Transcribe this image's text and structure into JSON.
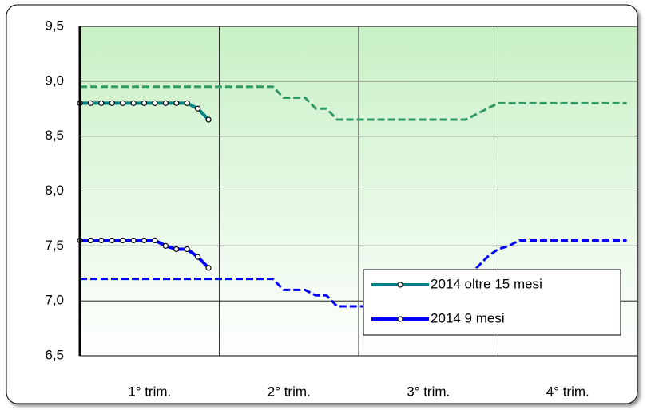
{
  "chart_data": {
    "type": "line",
    "categories": [
      "1° trim.",
      "2° trim.",
      "3° trim.",
      "4° trim."
    ],
    "x": [
      1,
      2,
      3,
      4,
      5,
      6,
      7,
      8,
      9,
      10,
      11,
      12,
      13,
      14,
      15,
      16,
      17,
      18,
      19,
      20,
      21,
      22,
      23,
      24,
      25,
      26,
      27,
      28,
      29,
      30,
      31,
      32,
      33,
      34,
      35,
      36,
      37,
      38,
      39,
      40,
      41,
      42,
      43,
      44,
      45,
      46,
      47,
      48,
      49,
      50,
      51,
      52
    ],
    "xlim": [
      1,
      53
    ],
    "ylim": [
      6.5,
      9.5
    ],
    "yticks": [
      {
        "value": 6.5,
        "label": "6,5"
      },
      {
        "value": 7,
        "label": "7,0"
      },
      {
        "value": 7.5,
        "label": "7,5"
      },
      {
        "value": 8,
        "label": "8,0"
      },
      {
        "value": 8.5,
        "label": "8,5"
      },
      {
        "value": 9,
        "label": "9,0"
      },
      {
        "value": 9.5,
        "label": "9,5"
      }
    ],
    "grid": true,
    "legend": "lower right",
    "series": [
      {
        "color": "#339966",
        "dashed": true,
        "values": [
          8.95,
          8.95,
          8.95,
          8.95,
          8.95,
          8.95,
          8.95,
          8.95,
          8.95,
          8.95,
          8.95,
          8.95,
          8.95,
          8.95,
          8.95,
          8.95,
          8.95,
          8.95,
          8.95,
          8.85,
          8.85,
          8.85,
          8.75,
          8.75,
          8.65,
          8.65,
          8.65,
          8.65,
          8.65,
          8.65,
          8.65,
          8.65,
          8.65,
          8.65,
          8.65,
          8.65,
          8.65,
          8.7,
          8.75,
          8.8,
          8.8,
          8.8,
          8.8,
          8.8,
          8.8,
          8.8,
          8.8,
          8.8,
          8.8,
          8.8,
          8.8,
          8.8
        ]
      },
      {
        "color": "#0000ff",
        "dashed": true,
        "values": [
          7.2,
          7.2,
          7.2,
          7.2,
          7.2,
          7.2,
          7.2,
          7.2,
          7.2,
          7.2,
          7.2,
          7.2,
          7.2,
          7.2,
          7.2,
          7.2,
          7.2,
          7.2,
          7.2,
          7.1,
          7.1,
          7.1,
          7.05,
          7.05,
          6.95,
          6.95,
          6.95,
          6.95,
          6.95,
          6.95,
          6.95,
          6.95,
          6.95,
          6.95,
          6.95,
          6.95,
          6.95,
          7.3,
          7.4,
          7.47,
          7.5,
          7.55,
          7.55,
          7.55,
          7.55,
          7.55,
          7.55,
          7.55,
          7.55,
          7.55,
          7.55,
          7.55
        ]
      },
      {
        "name": "2014 oltre 15 mesi",
        "color": "#008080",
        "dashed": false,
        "values": [
          8.8,
          8.8,
          8.8,
          8.8,
          8.8,
          8.8,
          8.8,
          8.8,
          8.8,
          8.8,
          8.8,
          8.75,
          8.65,
          null,
          null,
          null,
          null,
          null,
          null,
          null,
          null,
          null,
          null,
          null,
          null,
          null,
          null,
          null,
          null,
          null,
          null,
          null,
          null,
          null,
          null,
          null,
          null,
          null,
          null,
          null,
          null,
          null,
          null,
          null,
          null,
          null,
          null,
          null,
          null,
          null,
          null,
          null
        ]
      },
      {
        "name": "2014 9 mesi",
        "color": "#0000ff",
        "dashed": false,
        "values": [
          7.55,
          7.55,
          7.55,
          7.55,
          7.55,
          7.55,
          7.55,
          7.55,
          7.5,
          7.47,
          7.47,
          7.4,
          7.3,
          null,
          null,
          null,
          null,
          null,
          null,
          null,
          null,
          null,
          null,
          null,
          null,
          null,
          null,
          null,
          null,
          null,
          null,
          null,
          null,
          null,
          null,
          null,
          null,
          null,
          null,
          null,
          null,
          null,
          null,
          null,
          null,
          null,
          null,
          null,
          null,
          null,
          null,
          null
        ]
      }
    ]
  }
}
